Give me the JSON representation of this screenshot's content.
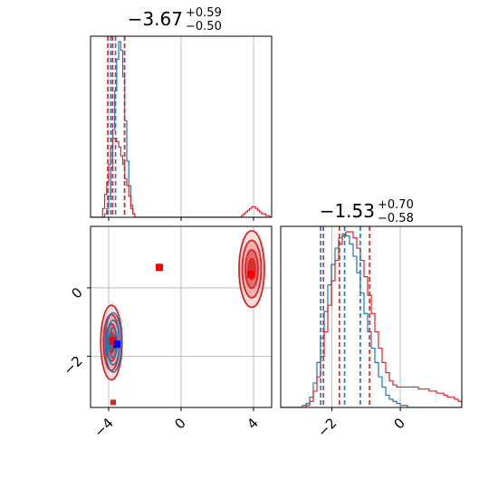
{
  "chart_data": {
    "type": "corner",
    "colors": {
      "red": "#d62728",
      "blue": "#1f77b4",
      "grid": "#b0b0b0",
      "marker_red": "#ff0000",
      "marker_blue": "#0000ff"
    },
    "titles": {
      "p1": {
        "value": "−3.67",
        "plus": "+0.59",
        "minus": "−0.50"
      },
      "p2": {
        "value": "−1.53",
        "plus": "+0.70",
        "minus": "−0.58"
      }
    },
    "axes": {
      "p1": {
        "range": [
          -5.0,
          5.0
        ],
        "ticks": [
          -4,
          0,
          4
        ],
        "tick_labels": [
          "−4",
          "0",
          "4"
        ]
      },
      "p2": {
        "range": [
          -3.5,
          1.8
        ],
        "ticks": [
          -2,
          0
        ],
        "tick_labels": [
          "−2",
          "0"
        ]
      }
    },
    "quantiles": {
      "p1": {
        "red": [
          -4.05,
          -3.78,
          -3.12
        ],
        "blue": [
          -3.88,
          -3.62,
          -3.12
        ]
      },
      "p2": {
        "red": [
          -2.25,
          -1.78,
          -0.9
        ],
        "blue": [
          -2.33,
          -1.63,
          -1.17
        ]
      }
    },
    "hist_p1": {
      "x0": -5.0,
      "x1": 5.0,
      "red": [
        0.0,
        0.0,
        0.0,
        0.0,
        0.0,
        0.0,
        0.05,
        0.13,
        0.2,
        0.3,
        0.4,
        0.45,
        0.45,
        0.43,
        0.4,
        0.35,
        0.3,
        0.22,
        0.18,
        0.12,
        0.05,
        0.02,
        0.0,
        0.0,
        0.0,
        0.0,
        0.0,
        0.0,
        0.0,
        0.0,
        0.0,
        0.0,
        0.0,
        0.0,
        0.0,
        0.0,
        0.0,
        0.0,
        0.0,
        0.0,
        0.0,
        0.0,
        0.0,
        0.0,
        0.0,
        0.0,
        0.0,
        0.0,
        0.0,
        0.0,
        0.0,
        0.0,
        0.0,
        0.0,
        0.0,
        0.0,
        0.0,
        0.0,
        0.0,
        0.0,
        0.0,
        0.0,
        0.0,
        0.0,
        0.0,
        0.0,
        0.0,
        0.0,
        0.0,
        0.0,
        0.0,
        0.0,
        0.0,
        0.0,
        0.0,
        0.01,
        0.02,
        0.03,
        0.04,
        0.05,
        0.06,
        0.06,
        0.05,
        0.04,
        0.03,
        0.02,
        0.02,
        0.01,
        0.01,
        0.0
      ],
      "blue": [
        0.0,
        0.0,
        0.0,
        0.0,
        0.0,
        0.0,
        0.0,
        0.02,
        0.05,
        0.12,
        0.28,
        0.5,
        0.72,
        0.9,
        1.0,
        0.95,
        0.8,
        0.55,
        0.32,
        0.18,
        0.07,
        0.02,
        0.0,
        0.0,
        0.0,
        0.0,
        0.0,
        0.0,
        0.0,
        0.0,
        0.0,
        0.0,
        0.0,
        0.0,
        0.0,
        0.0,
        0.0,
        0.0,
        0.0,
        0.0,
        0.0,
        0.0,
        0.0,
        0.0,
        0.0,
        0.0,
        0.0,
        0.0,
        0.0,
        0.0,
        0.0,
        0.0,
        0.0,
        0.0,
        0.0,
        0.0,
        0.0,
        0.0,
        0.0,
        0.0,
        0.0,
        0.0,
        0.0,
        0.0,
        0.0,
        0.0,
        0.0,
        0.0,
        0.0,
        0.0,
        0.0,
        0.0,
        0.0,
        0.0,
        0.0,
        0.0,
        0.0,
        0.0,
        0.0,
        0.0,
        0.0,
        0.0,
        0.0,
        0.0,
        0.0,
        0.0,
        0.0,
        0.0,
        0.0,
        0.0
      ]
    },
    "hist_p2": {
      "x0": -3.5,
      "x1": 1.8,
      "red": [
        0.0,
        0.0,
        0.0,
        0.0,
        0.0,
        0.0,
        0.0,
        0.01,
        0.03,
        0.08,
        0.15,
        0.25,
        0.37,
        0.5,
        0.62,
        0.72,
        0.8,
        0.84,
        0.86,
        0.86,
        0.83,
        0.78,
        0.72,
        0.64,
        0.55,
        0.46,
        0.37,
        0.29,
        0.22,
        0.17,
        0.13,
        0.11,
        0.1,
        0.1,
        0.1,
        0.1,
        0.1,
        0.1,
        0.09,
        0.09,
        0.09,
        0.08,
        0.08,
        0.07,
        0.07,
        0.06,
        0.05,
        0.05,
        0.04,
        0.03
      ],
      "blue": [
        0.0,
        0.0,
        0.0,
        0.0,
        0.0,
        0.0,
        0.01,
        0.02,
        0.05,
        0.12,
        0.22,
        0.34,
        0.47,
        0.6,
        0.7,
        0.78,
        0.83,
        0.85,
        0.84,
        0.8,
        0.74,
        0.66,
        0.56,
        0.46,
        0.37,
        0.29,
        0.22,
        0.15,
        0.1,
        0.06,
        0.04,
        0.03,
        0.02,
        0.01,
        0.01,
        0.0,
        0.0,
        0.0,
        0.0,
        0.0,
        0.0,
        0.0,
        0.0,
        0.0,
        0.0,
        0.0,
        0.0,
        0.0,
        0.0,
        0.0
      ]
    },
    "modes": [
      {
        "cx": -3.85,
        "cy": -1.6,
        "sx": 0.42,
        "sy": 0.78,
        "color": "red"
      },
      {
        "cx": -3.75,
        "cy": -1.6,
        "sx": 0.32,
        "sy": 0.62,
        "color": "blue"
      },
      {
        "cx": 3.9,
        "cy": 0.55,
        "sx": 0.5,
        "sy": 0.8,
        "color": "red"
      }
    ],
    "markers": [
      {
        "x": -1.2,
        "y": 0.6,
        "color": "marker_red"
      },
      {
        "x": 3.85,
        "y": 0.4,
        "color": "marker_red"
      },
      {
        "x": -3.78,
        "y": -1.55,
        "color": "marker_red"
      },
      {
        "x": -3.55,
        "y": -1.65,
        "color": "marker_blue"
      }
    ]
  }
}
